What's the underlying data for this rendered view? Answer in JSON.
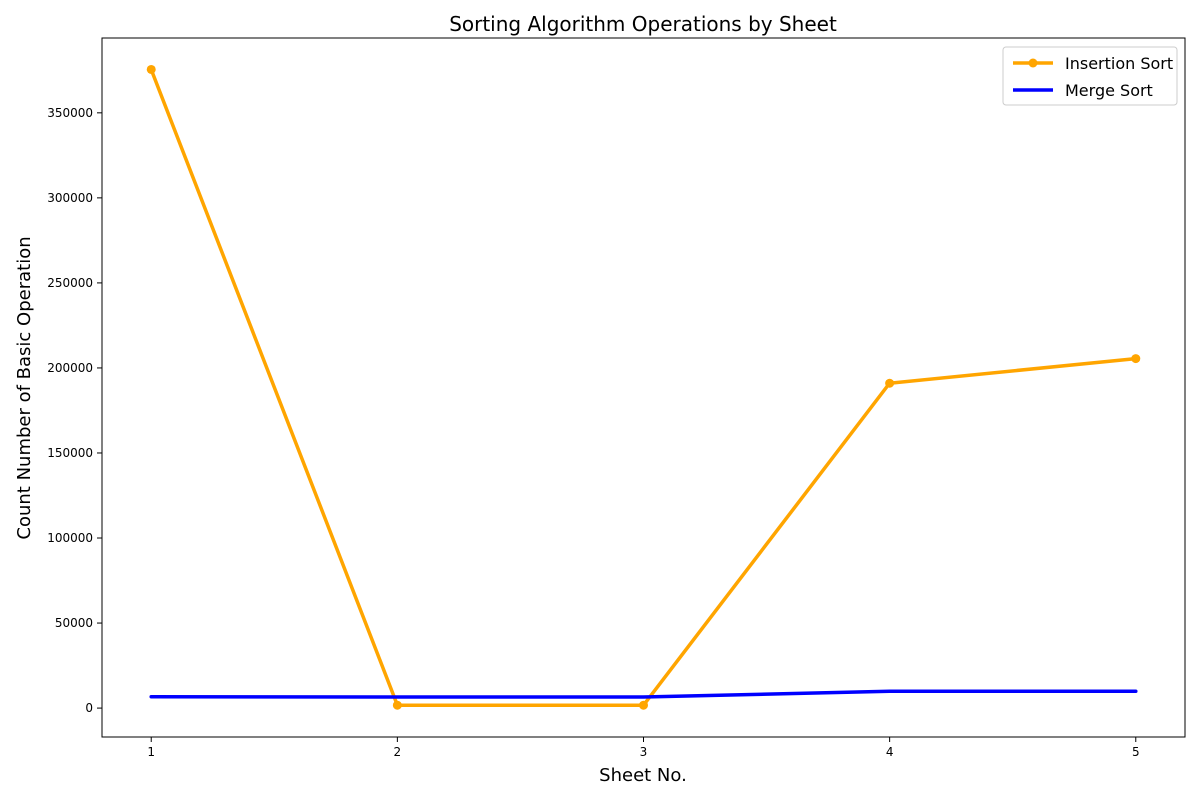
{
  "chart_data": {
    "type": "line",
    "title": "Sorting Algorithm Operations by Sheet",
    "xlabel": "Sheet No.",
    "ylabel": "Count Number of Basic Operation",
    "x": [
      1,
      2,
      3,
      4,
      5
    ],
    "x_ticks": [
      "1",
      "2",
      "3",
      "4",
      "5"
    ],
    "xlim": [
      0.8,
      5.2
    ],
    "ylim": [
      -17000,
      394000
    ],
    "y_ticks": [
      0,
      50000,
      100000,
      150000,
      200000,
      250000,
      300000,
      350000
    ],
    "y_tick_labels": [
      "0",
      "50000",
      "100000",
      "150000",
      "200000",
      "250000",
      "300000",
      "350000"
    ],
    "grid": false,
    "legend_position": "upper right",
    "series": [
      {
        "name": "Insertion Sort",
        "color": "#FFA500",
        "marker": "circle",
        "values": [
          375500,
          1700,
          1700,
          191000,
          205500
        ]
      },
      {
        "name": "Merge Sort",
        "color": "#0000FF",
        "marker": "none",
        "values": [
          6700,
          6500,
          6500,
          9900,
          9900
        ]
      }
    ]
  }
}
